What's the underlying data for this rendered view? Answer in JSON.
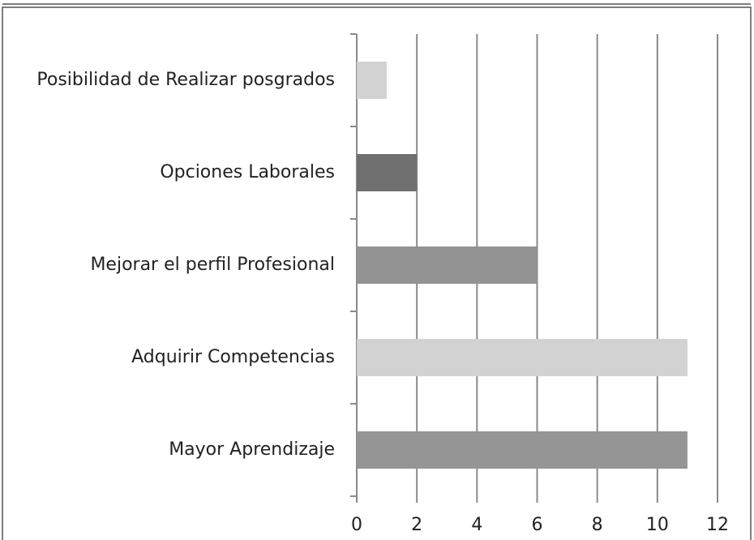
{
  "chart_data": {
    "type": "barh",
    "categories": [
      "Posibilidad de Realizar posgrados",
      "Opciones Laborales",
      "Mejorar el perfil Profesional",
      "Adquirir Competencias",
      "Mayor Aprendizaje"
    ],
    "values": [
      1,
      2,
      6,
      11,
      11
    ],
    "colors": [
      "#d2d2d2",
      "#6f6f6f",
      "#939393",
      "#d2d2d2",
      "#959595"
    ],
    "xlim": [
      0,
      12
    ],
    "xticks": [
      0,
      2,
      4,
      6,
      8,
      10,
      12
    ],
    "grid": true
  }
}
